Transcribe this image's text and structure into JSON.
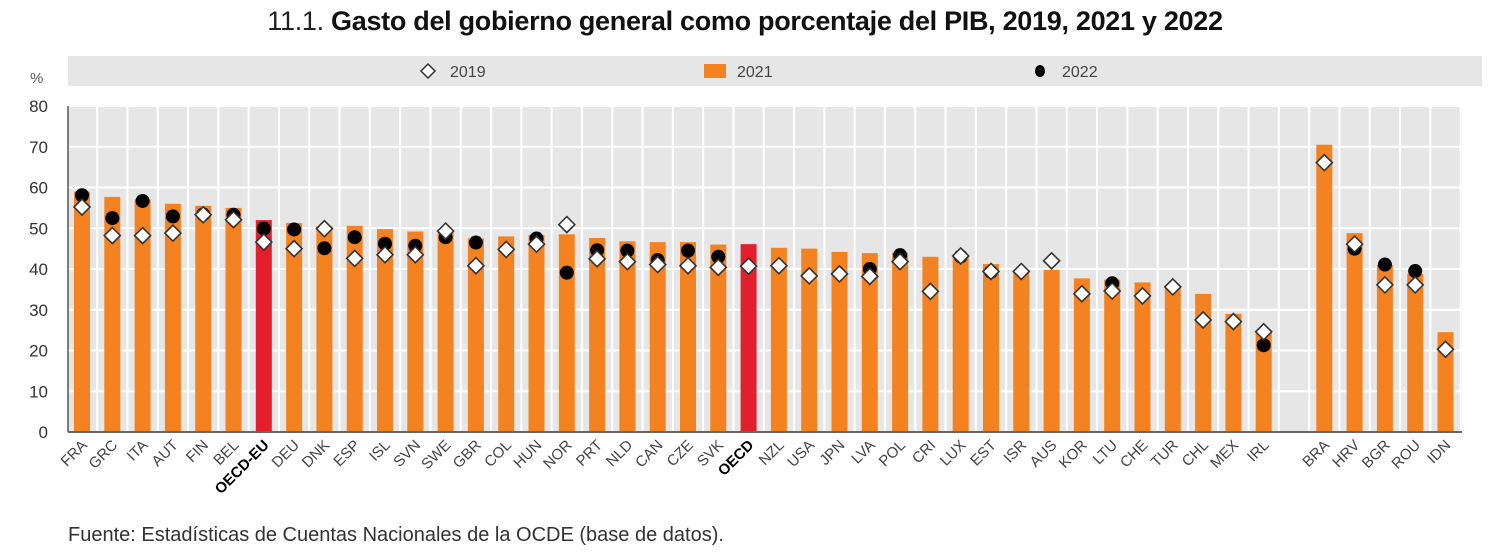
{
  "title": {
    "number": "11.1.",
    "text": "Gasto del gobierno general como porcentaje del PIB, 2019, 2021 y 2022"
  },
  "footer": {
    "source": "Fuente: Estadísticas de Cuentas Nacionales de la OCDE (base de datos)."
  },
  "colors": {
    "bar": "#F58220",
    "bar_highlight": "#E2202C",
    "plot_bg": "#E6E6E6",
    "grid": "#FFFFFF",
    "marker_2022": "#000000",
    "marker_2019_fill": "#FFFFFF",
    "marker_2019_stroke": "#333333"
  },
  "chart_data": {
    "type": "bar",
    "title": "11.1. Gasto del gobierno general como porcentaje del PIB, 2019, 2021 y 2022",
    "xlabel": "",
    "ylabel": "%",
    "ylim": [
      0,
      80
    ],
    "yticks": [
      0,
      10,
      20,
      30,
      40,
      50,
      60,
      70,
      80
    ],
    "grid": true,
    "legend": {
      "placement": "top",
      "entries": [
        {
          "label": "2019",
          "marker": "diamond-open"
        },
        {
          "label": "2021",
          "marker": "bar"
        },
        {
          "label": "2022",
          "marker": "circle-filled"
        }
      ]
    },
    "groups": [
      {
        "categories": [
          "FRA",
          "GRC",
          "ITA",
          "AUT",
          "FIN",
          "BEL",
          "OECD-EU",
          "DEU",
          "DNK",
          "ESP",
          "ISL",
          "SVN",
          "SWE",
          "GBR",
          "COL",
          "HUN",
          "NOR",
          "PRT",
          "NLD",
          "CAN",
          "CZE",
          "SVK",
          "OECD",
          "NZL",
          "USA",
          "JPN",
          "LVA",
          "POL",
          "CRI",
          "LUX",
          "EST",
          "ISR",
          "AUS",
          "KOR",
          "LTU",
          "CHE",
          "TUR",
          "CHL",
          "MEX",
          "IRL"
        ]
      },
      {
        "categories": [
          "BRA",
          "HRV",
          "BGR",
          "ROU",
          "IDN"
        ]
      }
    ],
    "highlight_categories": [
      "OECD-EU",
      "OECD"
    ],
    "categories": [
      "FRA",
      "GRC",
      "ITA",
      "AUT",
      "FIN",
      "BEL",
      "OECD-EU",
      "DEU",
      "DNK",
      "ESP",
      "ISL",
      "SVN",
      "SWE",
      "GBR",
      "COL",
      "HUN",
      "NOR",
      "PRT",
      "NLD",
      "CAN",
      "CZE",
      "SVK",
      "OECD",
      "NZL",
      "USA",
      "JPN",
      "LVA",
      "POL",
      "CRI",
      "LUX",
      "EST",
      "ISR",
      "AUS",
      "KOR",
      "LTU",
      "CHE",
      "TUR",
      "CHL",
      "MEX",
      "IRL",
      "BRA",
      "HRV",
      "BGR",
      "ROU",
      "IDN"
    ],
    "series": [
      {
        "name": "2021",
        "kind": "bar",
        "values": [
          59.0,
          57.7,
          57.1,
          56.0,
          55.5,
          55.0,
          52.0,
          51.3,
          50.5,
          50.6,
          49.8,
          49.2,
          49.5,
          47.5,
          48.0,
          48.3,
          48.5,
          47.6,
          46.8,
          46.6,
          46.6,
          46.0,
          46.1,
          45.2,
          45.0,
          44.2,
          43.9,
          44.0,
          43.0,
          43.3,
          41.2,
          39.8,
          39.8,
          37.7,
          37.4,
          36.7,
          35.4,
          33.9,
          29.0,
          24.3,
          70.5,
          48.8,
          41.0,
          38.8,
          24.5
        ]
      },
      {
        "name": "2019",
        "kind": "diamond",
        "values": [
          55.2,
          48.2,
          48.2,
          48.8,
          53.3,
          52.1,
          46.6,
          45.0,
          49.9,
          42.6,
          43.5,
          43.5,
          49.3,
          40.8,
          44.8,
          46.1,
          50.9,
          42.5,
          41.8,
          41.1,
          40.8,
          40.4,
          40.7,
          40.8,
          38.3,
          38.8,
          38.2,
          41.8,
          34.5,
          43.2,
          39.4,
          39.4,
          42.0,
          33.9,
          34.6,
          33.4,
          35.6,
          27.5,
          27.1,
          24.6,
          66.1,
          46.1,
          36.1,
          36.1,
          20.3
        ]
      },
      {
        "name": "2022",
        "kind": "circle",
        "values": [
          58.1,
          52.5,
          56.7,
          52.9,
          53.4,
          53.3,
          49.9,
          49.7,
          45.1,
          47.8,
          46.2,
          45.7,
          47.8,
          46.5,
          null,
          47.5,
          39.1,
          44.6,
          44.5,
          42.2,
          44.5,
          43.0,
          null,
          null,
          null,
          null,
          40.0,
          43.4,
          null,
          43.1,
          39.3,
          null,
          null,
          null,
          36.5,
          null,
          null,
          null,
          null,
          21.3,
          null,
          45.0,
          41.1,
          39.5,
          null
        ]
      }
    ]
  }
}
